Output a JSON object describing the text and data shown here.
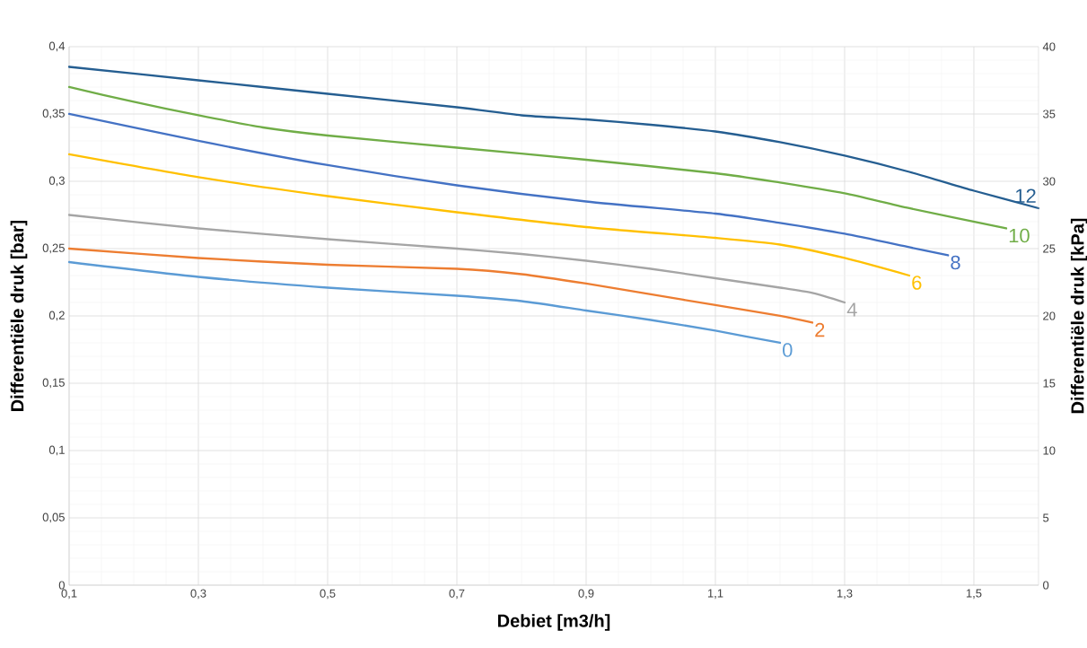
{
  "chart_data": {
    "type": "line",
    "xlabel": "Debiet  [m3/h]",
    "ylabel": "Differentiële druk  [bar]",
    "y2label": "Differentiële druk [kPa]",
    "xlim": [
      0.1,
      1.6
    ],
    "ylim": [
      0,
      0.4
    ],
    "y2lim": [
      0,
      40
    ],
    "xticks": [
      {
        "value": 0.1,
        "label": "0,1"
      },
      {
        "value": 0.3,
        "label": "0,3"
      },
      {
        "value": 0.5,
        "label": "0,5"
      },
      {
        "value": 0.7,
        "label": "0,7"
      },
      {
        "value": 0.9,
        "label": "0,9"
      },
      {
        "value": 1.1,
        "label": "1,1"
      },
      {
        "value": 1.3,
        "label": "1,3"
      },
      {
        "value": 1.5,
        "label": "1,5"
      }
    ],
    "yticks": [
      0,
      {
        "value": 0.05,
        "label": "0,05"
      },
      {
        "value": 0.1,
        "label": "0,1"
      },
      {
        "value": 0.15,
        "label": "0,15"
      },
      {
        "value": 0.2,
        "label": "0,2"
      },
      {
        "value": 0.25,
        "label": "0,25"
      },
      {
        "value": 0.3,
        "label": "0,3"
      },
      {
        "value": 0.35,
        "label": "0,35"
      },
      {
        "value": 0.4,
        "label": "0,4"
      }
    ],
    "y2ticks": [
      0,
      5,
      10,
      15,
      20,
      25,
      30,
      35,
      40
    ],
    "grid": true,
    "line_style": "solid",
    "series": [
      {
        "name": "0",
        "color": "#5b9bd5",
        "x": [
          0.1,
          0.3,
          0.5,
          0.7,
          0.8,
          0.9,
          1.0,
          1.1,
          1.2
        ],
        "values": [
          0.24,
          0.229,
          0.221,
          0.215,
          0.211,
          0.204,
          0.197,
          0.189,
          0.18
        ]
      },
      {
        "name": "2",
        "color": "#ed7d31",
        "x": [
          0.1,
          0.3,
          0.5,
          0.7,
          0.8,
          0.9,
          1.0,
          1.1,
          1.2,
          1.25
        ],
        "values": [
          0.25,
          0.243,
          0.238,
          0.235,
          0.231,
          0.224,
          0.216,
          0.208,
          0.2,
          0.195
        ]
      },
      {
        "name": "4",
        "color": "#a5a5a5",
        "x": [
          0.1,
          0.3,
          0.5,
          0.7,
          0.8,
          0.9,
          1.0,
          1.1,
          1.2,
          1.25,
          1.3
        ],
        "values": [
          0.275,
          0.265,
          0.257,
          0.25,
          0.246,
          0.241,
          0.235,
          0.228,
          0.221,
          0.217,
          0.21
        ]
      },
      {
        "name": "6",
        "color": "#ffc000",
        "x": [
          0.1,
          0.3,
          0.5,
          0.7,
          0.9,
          1.1,
          1.2,
          1.3,
          1.4
        ],
        "values": [
          0.32,
          0.303,
          0.289,
          0.277,
          0.266,
          0.258,
          0.253,
          0.243,
          0.23
        ]
      },
      {
        "name": "8",
        "color": "#4472c4",
        "x": [
          0.1,
          0.3,
          0.5,
          0.7,
          0.9,
          1.1,
          1.2,
          1.3,
          1.4,
          1.46
        ],
        "values": [
          0.35,
          0.33,
          0.312,
          0.297,
          0.285,
          0.276,
          0.269,
          0.261,
          0.251,
          0.245
        ]
      },
      {
        "name": "10",
        "color": "#70ad47",
        "x": [
          0.1,
          0.2,
          0.3,
          0.4,
          0.5,
          0.7,
          0.9,
          1.1,
          1.2,
          1.3,
          1.4,
          1.55
        ],
        "values": [
          0.37,
          0.359,
          0.349,
          0.34,
          0.334,
          0.325,
          0.316,
          0.306,
          0.299,
          0.291,
          0.28,
          0.265
        ]
      },
      {
        "name": "12",
        "color": "#255e91",
        "x": [
          0.1,
          0.3,
          0.5,
          0.7,
          0.8,
          0.9,
          1.0,
          1.1,
          1.2,
          1.3,
          1.4,
          1.5,
          1.6
        ],
        "values": [
          0.385,
          0.375,
          0.365,
          0.355,
          0.349,
          0.346,
          0.342,
          0.337,
          0.329,
          0.319,
          0.307,
          0.293,
          0.28
        ]
      }
    ]
  }
}
